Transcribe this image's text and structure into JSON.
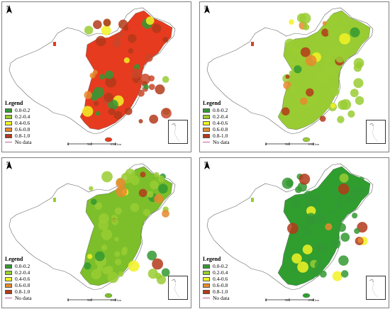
{
  "legend": {
    "title": "Legend",
    "classes": [
      {
        "label": "0.0-0.2",
        "color": "#339933"
      },
      {
        "label": "0.2-0.4",
        "color": "#99cc33"
      },
      {
        "label": "0.4-0.6",
        "color": "#f2f224"
      },
      {
        "label": "0.6-0.8",
        "color": "#e68a2e"
      },
      {
        "label": "0.8-1.0",
        "color": "#b33a1a"
      }
    ],
    "no_data_label": "No data"
  },
  "north_label": "N",
  "scale_labels": [
    "0",
    "500",
    "1000 km"
  ],
  "panels": [
    {
      "id": "top-left",
      "dominant_color": "#e63b1f"
    },
    {
      "id": "top-right",
      "dominant_color": "#99cc33"
    },
    {
      "id": "bottom-left",
      "dominant_color": "#7cbf2a"
    },
    {
      "id": "bottom-right",
      "dominant_color": "#2f9e2f"
    }
  ]
}
